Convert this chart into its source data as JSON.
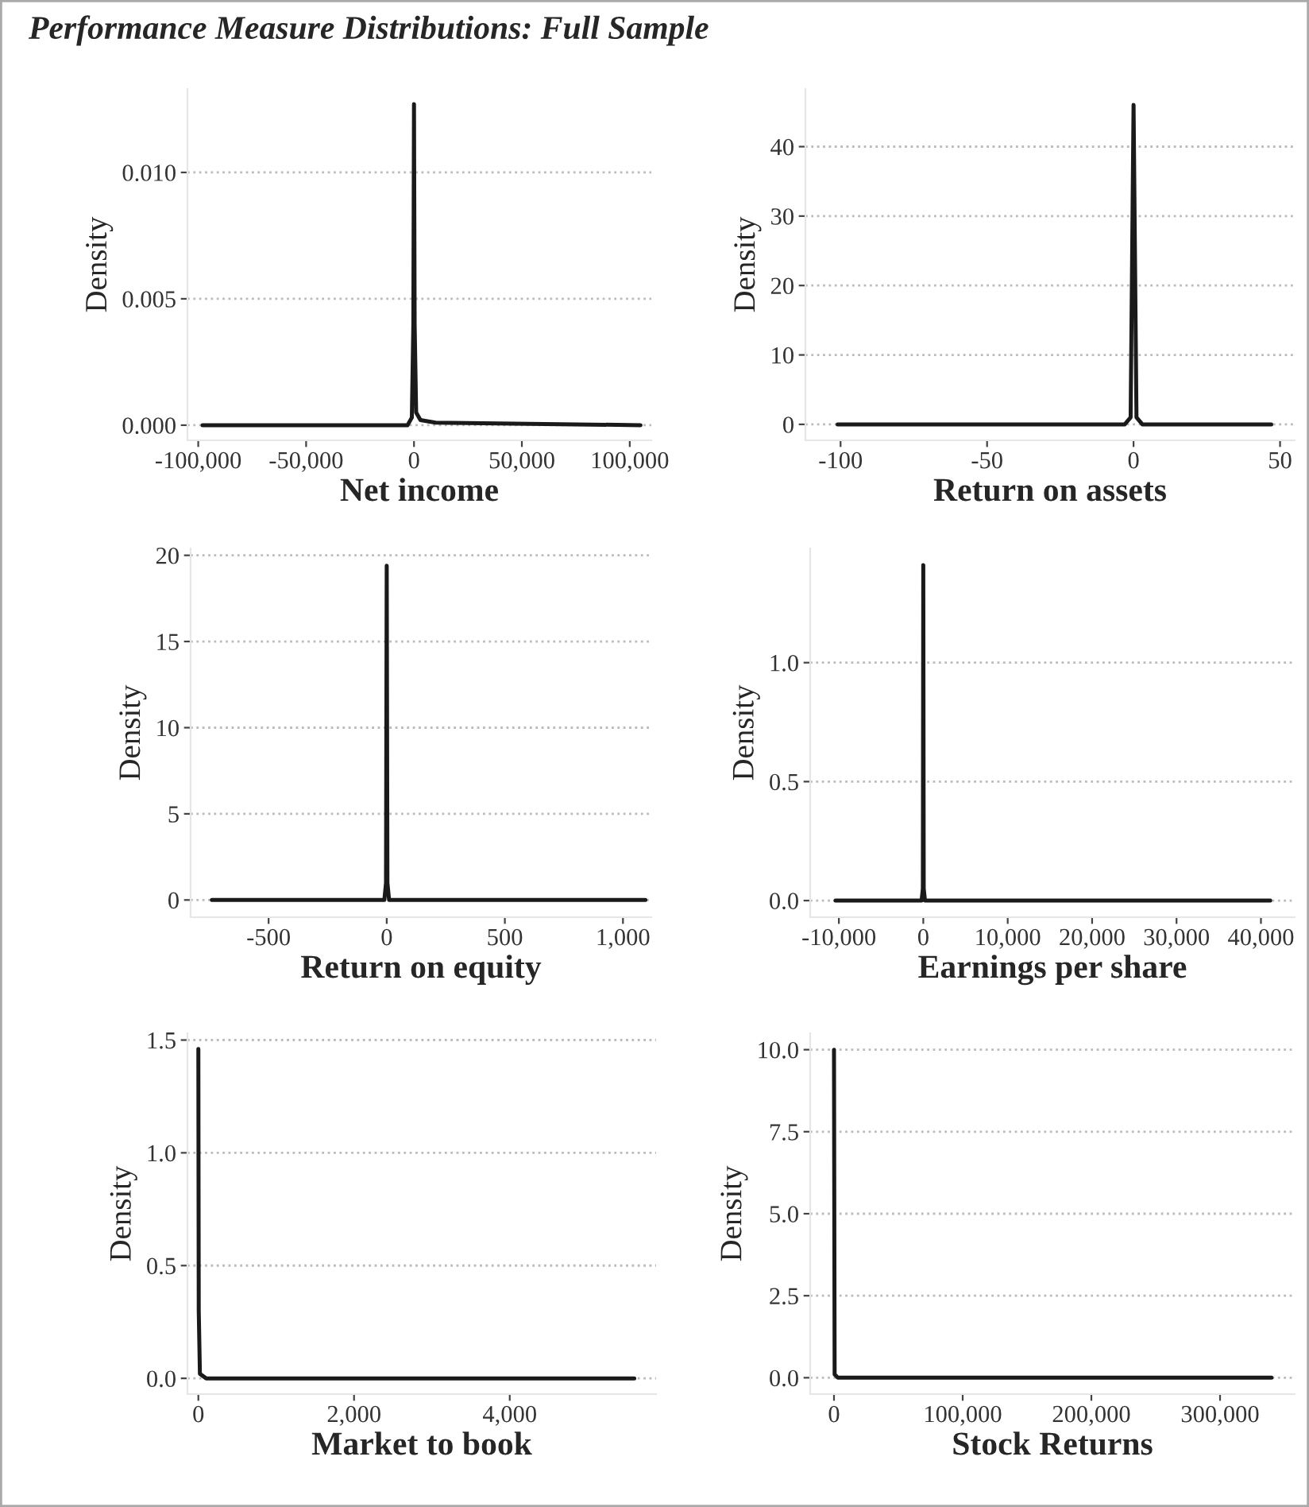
{
  "chart_data": [
    {
      "type": "line",
      "title": "Performance Measure Distributions: Full Sample",
      "xlabel": "Net income",
      "ylabel": "Density",
      "grid": "y",
      "legend": false,
      "xlim": [
        -105000,
        110000
      ],
      "xticks": [
        {
          "value": -100000,
          "label": "-100,000"
        },
        {
          "value": -50000,
          "label": "-50,000"
        },
        0,
        {
          "value": 50000,
          "label": "50,000"
        },
        {
          "value": 100000,
          "label": "100,000"
        }
      ],
      "ylim": [
        -0.0006,
        0.0133
      ],
      "yticks": [
        {
          "value": 0,
          "label": "0.000"
        },
        {
          "value": 0.005,
          "label": "0.005"
        },
        {
          "value": 0.01,
          "label": "0.010"
        }
      ],
      "series": [
        {
          "color": "#1a1a1a",
          "x": [
            -98000,
            -3000,
            -1000,
            -300,
            0,
            300,
            1000,
            3000,
            10000,
            105000
          ],
          "values": [
            0,
            0,
            0.0003,
            0.004,
            0.0127,
            0.004,
            0.0005,
            0.0002,
            0.0001,
            0
          ]
        }
      ]
    },
    {
      "type": "line",
      "xlabel": "Return on assets",
      "ylabel": "Density",
      "grid": "y",
      "legend": false,
      "xlim": [
        -112,
        55
      ],
      "xticks": [
        -100,
        -50,
        0,
        50
      ],
      "ylim": [
        -2.3,
        48.3
      ],
      "yticks": [
        0,
        10,
        20,
        30,
        40
      ],
      "series": [
        {
          "color": "#1a1a1a",
          "x": [
            -101,
            -3,
            -1,
            0,
            1,
            3,
            47
          ],
          "values": [
            0,
            0,
            1,
            46,
            1,
            0,
            0
          ]
        }
      ]
    },
    {
      "type": "line",
      "xlabel": "Return on equity",
      "ylabel": "Density",
      "grid": "y",
      "legend": false,
      "xlim": [
        -830,
        1120
      ],
      "xticks": [
        -500,
        0,
        500,
        {
          "value": 1000,
          "label": "1,000"
        }
      ],
      "ylim": [
        -1,
        20.4
      ],
      "yticks": [
        0,
        5,
        10,
        15,
        20
      ],
      "series": [
        {
          "color": "#1a1a1a",
          "x": [
            -740,
            -10,
            -3,
            0,
            3,
            10,
            1095
          ],
          "values": [
            0,
            0,
            1,
            19.4,
            1,
            0,
            0
          ]
        }
      ]
    },
    {
      "type": "line",
      "xlabel": "Earnings per share",
      "ylabel": "Density",
      "grid": "y",
      "legend": false,
      "xlim": [
        -13400,
        44000
      ],
      "xticks": [
        {
          "value": -10000,
          "label": "-10,000"
        },
        0,
        {
          "value": 10000,
          "label": "10,000"
        },
        {
          "value": 20000,
          "label": "20,000"
        },
        {
          "value": 30000,
          "label": "30,000"
        },
        {
          "value": 40000,
          "label": "40,000"
        }
      ],
      "ylim": [
        -0.07,
        1.48
      ],
      "yticks": [
        {
          "value": 0,
          "label": "0.0"
        },
        0.5,
        {
          "value": 1,
          "label": "1.0"
        }
      ],
      "series": [
        {
          "color": "#1a1a1a",
          "x": [
            -10400,
            -200,
            -50,
            0,
            50,
            200,
            41100
          ],
          "values": [
            0,
            0,
            0.05,
            1.41,
            0.05,
            0,
            0
          ]
        }
      ]
    },
    {
      "type": "line",
      "xlabel": "Market to book",
      "ylabel": "Density",
      "grid": "y",
      "legend": false,
      "xlim": [
        -140,
        5880
      ],
      "xticks": [
        0,
        {
          "value": 2000,
          "label": "2,000"
        },
        {
          "value": 4000,
          "label": "4,000"
        }
      ],
      "ylim": [
        -0.07,
        1.53
      ],
      "yticks": [
        {
          "value": 0,
          "label": "0.0"
        },
        0.5,
        {
          "value": 1,
          "label": "1.0"
        },
        1.5
      ],
      "series": [
        {
          "color": "#1a1a1a",
          "x": [
            0,
            5,
            20,
            100,
            5600
          ],
          "values": [
            1.46,
            0.3,
            0.02,
            0,
            0
          ]
        }
      ]
    },
    {
      "type": "line",
      "xlabel": "Stock Returns",
      "ylabel": "Density",
      "grid": "y",
      "legend": false,
      "xlim": [
        -18500,
        358000
      ],
      "xticks": [
        0,
        {
          "value": 100000,
          "label": "100,000"
        },
        {
          "value": 200000,
          "label": "200,000"
        },
        {
          "value": 300000,
          "label": "300,000"
        }
      ],
      "ylim": [
        -0.5,
        10.5
      ],
      "yticks": [
        {
          "value": 0,
          "label": "0.0"
        },
        2.5,
        {
          "value": 5,
          "label": "5.0"
        },
        7.5,
        {
          "value": 10,
          "label": "10.0"
        }
      ],
      "series": [
        {
          "color": "#1a1a1a",
          "x": [
            0,
            500,
            3000,
            340000
          ],
          "values": [
            10.0,
            0.1,
            0,
            0
          ]
        }
      ]
    }
  ]
}
